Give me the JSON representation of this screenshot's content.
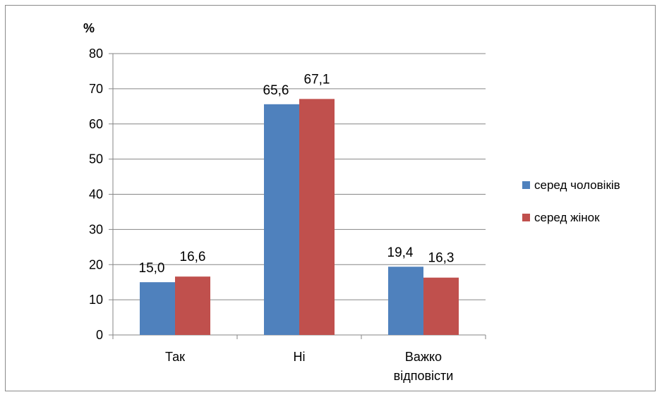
{
  "chart_data": {
    "type": "bar",
    "unit_label": "%",
    "categories": [
      "Так",
      "Ні",
      "Важко відповісти"
    ],
    "category_label_lines": [
      [
        "Так"
      ],
      [
        "Ні"
      ],
      [
        "Важко",
        "відповісти"
      ]
    ],
    "series": [
      {
        "name": "серед чоловіків",
        "color": "#4F81BD",
        "values": [
          15.0,
          65.6,
          19.4
        ],
        "labels": [
          "15,0",
          "65,6",
          "19,4"
        ]
      },
      {
        "name": "серед жінок",
        "color": "#C0504D",
        "values": [
          16.6,
          67.1,
          16.3
        ],
        "labels": [
          "16,6",
          "67,1",
          "16,3"
        ]
      }
    ],
    "ylim": [
      0,
      80
    ],
    "yticks": [
      0,
      10,
      20,
      30,
      40,
      50,
      60,
      70,
      80
    ],
    "grid": true,
    "legend_position": "right"
  }
}
